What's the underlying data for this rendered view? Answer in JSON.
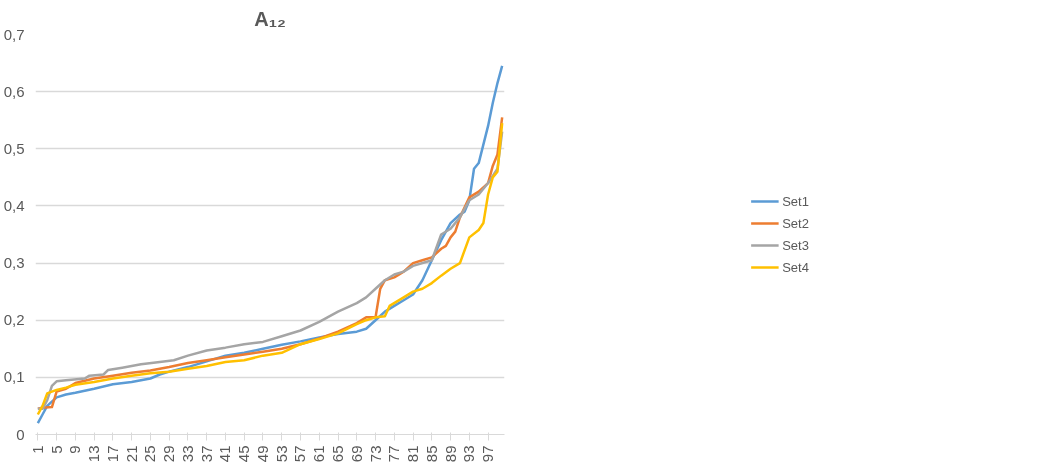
{
  "chart_data": {
    "type": "line",
    "title": "A₁₂",
    "xlim": [
      0.5,
      100.5
    ],
    "xticks": [
      1,
      5,
      9,
      13,
      17,
      21,
      25,
      29,
      33,
      37,
      41,
      45,
      49,
      53,
      57,
      61,
      65,
      69,
      73,
      77,
      81,
      85,
      89,
      93,
      97
    ],
    "ylim": [
      0,
      0.7
    ],
    "yticks": [
      {
        "value": 0,
        "label": "0"
      },
      {
        "value": 0.1,
        "label": "0,1"
      },
      {
        "value": 0.2,
        "label": "0,2"
      },
      {
        "value": 0.3,
        "label": "0,3"
      },
      {
        "value": 0.4,
        "label": "0,4"
      },
      {
        "value": 0.5,
        "label": "0,5"
      },
      {
        "value": 0.6,
        "label": "0,6"
      },
      {
        "value": 0.7,
        "label": "0,7"
      }
    ],
    "grid": "y",
    "legend": "right",
    "marker": "none",
    "line_style": "solid",
    "series": [
      {
        "name": "Set1",
        "color": "#5b9bd5",
        "x": [
          1,
          2,
          3,
          5,
          7,
          9,
          13,
          17,
          21,
          25,
          27,
          29,
          33,
          37,
          41,
          45,
          49,
          53,
          57,
          61,
          65,
          69,
          71,
          73,
          75,
          77,
          79,
          81,
          83,
          85,
          87,
          89,
          91,
          92,
          93,
          94,
          95,
          97,
          98,
          99,
          100
        ],
        "values": [
          0.02,
          0.035,
          0.05,
          0.065,
          0.07,
          0.073,
          0.08,
          0.088,
          0.092,
          0.098,
          0.105,
          0.11,
          0.118,
          0.128,
          0.138,
          0.143,
          0.15,
          0.157,
          0.163,
          0.17,
          0.176,
          0.18,
          0.185,
          0.2,
          0.215,
          0.225,
          0.235,
          0.245,
          0.27,
          0.305,
          0.34,
          0.37,
          0.385,
          0.39,
          0.41,
          0.465,
          0.475,
          0.54,
          0.58,
          0.615,
          0.645
        ]
      },
      {
        "name": "Set2",
        "color": "#ed7d31",
        "x": [
          1,
          2,
          4,
          5,
          7,
          9,
          13,
          17,
          21,
          25,
          29,
          33,
          37,
          41,
          45,
          49,
          53,
          57,
          61,
          65,
          69,
          71,
          73,
          74,
          75,
          77,
          79,
          81,
          83,
          85,
          87,
          88,
          89,
          90,
          91,
          93,
          95,
          97,
          98,
          99,
          100
        ],
        "values": [
          0.045,
          0.047,
          0.048,
          0.075,
          0.08,
          0.09,
          0.098,
          0.103,
          0.108,
          0.112,
          0.118,
          0.125,
          0.13,
          0.135,
          0.14,
          0.145,
          0.15,
          0.158,
          0.168,
          0.18,
          0.195,
          0.205,
          0.205,
          0.255,
          0.27,
          0.275,
          0.285,
          0.3,
          0.305,
          0.31,
          0.325,
          0.33,
          0.345,
          0.355,
          0.38,
          0.415,
          0.425,
          0.44,
          0.47,
          0.49,
          0.555
        ]
      },
      {
        "name": "Set3",
        "color": "#a5a5a5",
        "x": [
          1,
          2,
          3,
          4,
          5,
          7,
          11,
          12,
          15,
          16,
          19,
          23,
          27,
          30,
          33,
          37,
          41,
          45,
          49,
          53,
          57,
          61,
          65,
          69,
          71,
          73,
          75,
          77,
          79,
          81,
          85,
          87,
          89,
          91,
          93,
          95,
          97,
          99,
          100
        ],
        "values": [
          0.045,
          0.045,
          0.06,
          0.085,
          0.093,
          0.095,
          0.098,
          0.103,
          0.105,
          0.113,
          0.117,
          0.123,
          0.127,
          0.13,
          0.138,
          0.147,
          0.152,
          0.158,
          0.162,
          0.172,
          0.182,
          0.197,
          0.215,
          0.23,
          0.24,
          0.255,
          0.27,
          0.28,
          0.285,
          0.295,
          0.305,
          0.35,
          0.36,
          0.38,
          0.41,
          0.42,
          0.44,
          0.465,
          0.53
        ]
      },
      {
        "name": "Set4",
        "color": "#ffc000",
        "x": [
          1,
          2,
          3,
          5,
          7,
          9,
          13,
          17,
          21,
          25,
          29,
          33,
          37,
          41,
          45,
          49,
          53,
          57,
          61,
          65,
          69,
          71,
          73,
          75,
          76,
          79,
          81,
          83,
          85,
          87,
          89,
          91,
          93,
          95,
          96,
          97,
          98,
          99,
          100
        ],
        "values": [
          0.035,
          0.05,
          0.072,
          0.078,
          0.082,
          0.087,
          0.092,
          0.098,
          0.103,
          0.107,
          0.11,
          0.115,
          0.12,
          0.127,
          0.13,
          0.138,
          0.143,
          0.158,
          0.167,
          0.177,
          0.193,
          0.2,
          0.205,
          0.207,
          0.225,
          0.24,
          0.25,
          0.255,
          0.265,
          0.278,
          0.29,
          0.3,
          0.345,
          0.358,
          0.37,
          0.42,
          0.45,
          0.46,
          0.545
        ]
      }
    ]
  }
}
